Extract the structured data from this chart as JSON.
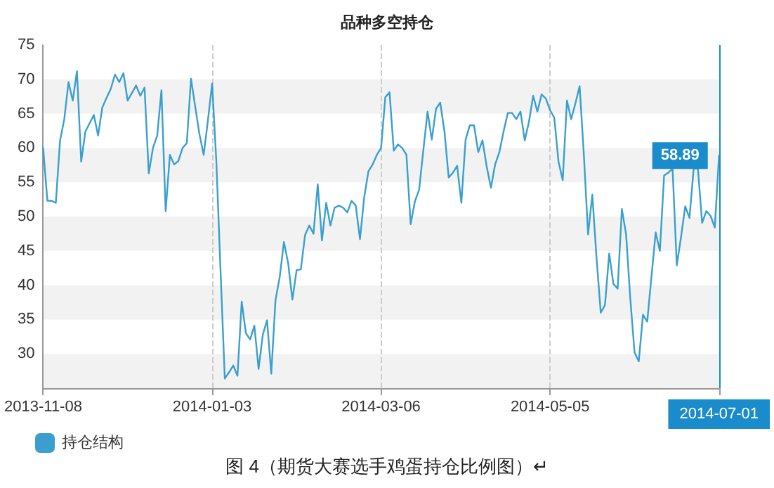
{
  "chart_data": {
    "type": "line",
    "title": "品种多空持仓",
    "annotations": [
      "图 4（期货大赛选手鸡蛋持仓比例图）↵"
    ],
    "categories": [
      "2013-11-08",
      null,
      null,
      null,
      null,
      null,
      null,
      null,
      null,
      null,
      null,
      null,
      null,
      null,
      null,
      null,
      null,
      null,
      null,
      null,
      null,
      null,
      null,
      null,
      null,
      null,
      null,
      null,
      null,
      null,
      null,
      null,
      null,
      null,
      null,
      null,
      null,
      null,
      null,
      null,
      "2014-01-03",
      null,
      null,
      null,
      null,
      null,
      null,
      null,
      null,
      null,
      null,
      null,
      null,
      null,
      null,
      null,
      null,
      null,
      null,
      null,
      null,
      null,
      null,
      null,
      null,
      null,
      null,
      null,
      null,
      null,
      null,
      null,
      null,
      null,
      null,
      null,
      null,
      null,
      null,
      null,
      "2014-03-06",
      null,
      null,
      null,
      null,
      null,
      null,
      null,
      null,
      null,
      null,
      null,
      null,
      null,
      null,
      null,
      null,
      null,
      null,
      null,
      null,
      null,
      null,
      null,
      null,
      null,
      null,
      null,
      null,
      null,
      null,
      null,
      null,
      null,
      null,
      null,
      null,
      null,
      null,
      null,
      "2014-05-05",
      null,
      null,
      null,
      null,
      null,
      null,
      null,
      null,
      null,
      null,
      null,
      null,
      null,
      null,
      null,
      null,
      null,
      null,
      null,
      null,
      null,
      null,
      null,
      null,
      null,
      null,
      null,
      null,
      null,
      null,
      null,
      null,
      null,
      null,
      null,
      null,
      null,
      null,
      null,
      "2014-07-01"
    ],
    "series": [
      {
        "name": "持仓结构",
        "color": "#3a9fcf",
        "values": [
          60.0,
          52.3,
          52.3,
          52.0,
          61.1,
          64.2,
          69.6,
          66.9,
          71.2,
          58.0,
          62.4,
          63.6,
          64.8,
          61.8,
          65.9,
          67.3,
          68.6,
          70.7,
          69.6,
          70.9,
          66.9,
          68.0,
          69.1,
          67.6,
          68.8,
          56.3,
          60.0,
          61.8,
          68.4,
          50.8,
          59.0,
          57.6,
          58.1,
          60.0,
          60.7,
          70.1,
          66.0,
          62.0,
          59.0,
          64.0,
          69.4,
          58.0,
          42.0,
          26.4,
          27.3,
          28.3,
          26.8,
          37.6,
          33.0,
          32.1,
          34.1,
          27.8,
          32.8,
          34.9,
          27.1,
          37.8,
          41.2,
          46.3,
          43.2,
          37.9,
          42.2,
          42.3,
          47.3,
          48.7,
          47.5,
          54.7,
          46.5,
          52.0,
          48.7,
          51.3,
          51.6,
          51.3,
          50.6,
          52.3,
          51.6,
          46.7,
          52.8,
          56.6,
          57.6,
          59.0,
          60.0,
          67.4,
          68.1,
          59.6,
          60.5,
          60.0,
          59.0,
          48.9,
          52.2,
          53.9,
          59.7,
          65.3,
          61.2,
          65.7,
          66.6,
          62.4,
          55.7,
          56.4,
          57.4,
          52.0,
          61.2,
          63.3,
          63.3,
          59.4,
          61.1,
          57.3,
          54.2,
          57.6,
          59.4,
          62.4,
          65.1,
          65.1,
          64.2,
          65.3,
          61.1,
          63.8,
          67.6,
          65.3,
          67.8,
          67.2,
          65.5,
          64.4,
          58.0,
          55.3,
          66.9,
          64.2,
          66.5,
          69.0,
          59.0,
          47.4,
          53.2,
          44.0,
          36.0,
          37.1,
          44.6,
          40.2,
          39.5,
          51.1,
          47.4,
          38.0,
          30.2,
          28.9,
          35.7,
          34.7,
          41.2,
          47.7,
          45.0,
          56.0,
          56.4,
          57.0,
          42.9,
          47.0,
          51.5,
          49.8,
          57.0,
          57.0,
          49.1,
          50.8,
          50.1,
          48.4,
          58.89
        ],
        "value_labels": [
          null,
          null,
          null,
          null,
          null,
          null,
          null,
          null,
          null,
          null,
          null,
          null,
          null,
          null,
          null,
          null,
          null,
          null,
          null,
          null,
          null,
          null,
          null,
          null,
          null,
          null,
          null,
          null,
          null,
          null,
          null,
          null,
          null,
          null,
          null,
          null,
          null,
          null,
          null,
          null,
          null,
          null,
          null,
          null,
          null,
          null,
          null,
          null,
          null,
          null,
          null,
          null,
          null,
          null,
          null,
          null,
          null,
          null,
          null,
          null,
          null,
          null,
          null,
          null,
          null,
          null,
          null,
          null,
          null,
          null,
          null,
          null,
          null,
          null,
          null,
          null,
          null,
          null,
          null,
          null,
          null,
          null,
          null,
          null,
          null,
          null,
          null,
          null,
          null,
          null,
          null,
          null,
          null,
          null,
          null,
          null,
          null,
          null,
          null,
          null,
          null,
          null,
          null,
          null,
          null,
          null,
          null,
          null,
          null,
          null,
          null,
          null,
          null,
          null,
          null,
          null,
          null,
          null,
          null,
          null,
          null,
          null,
          null,
          null,
          null,
          null,
          null,
          null,
          null,
          null,
          null,
          null,
          null,
          null,
          null,
          null,
          null,
          null,
          null,
          null,
          null,
          null,
          null,
          null,
          null,
          null,
          null,
          null,
          null,
          null,
          null,
          null,
          null,
          null,
          null,
          null,
          null,
          null,
          null,
          null,
          "58.89"
        ]
      }
    ],
    "ylim": [
      25,
      75
    ],
    "yticks": [
      {
        "value": 25,
        "label": null
      },
      30,
      35,
      40,
      45,
      50,
      55,
      60,
      65,
      70,
      75
    ],
    "ref_lines": [
      {
        "axis": "x",
        "value": "2014-07-01",
        "color": "#1a8bcb"
      }
    ],
    "grid": true,
    "legend": "bottom left",
    "marker": "none",
    "line_style": "solid"
  }
}
